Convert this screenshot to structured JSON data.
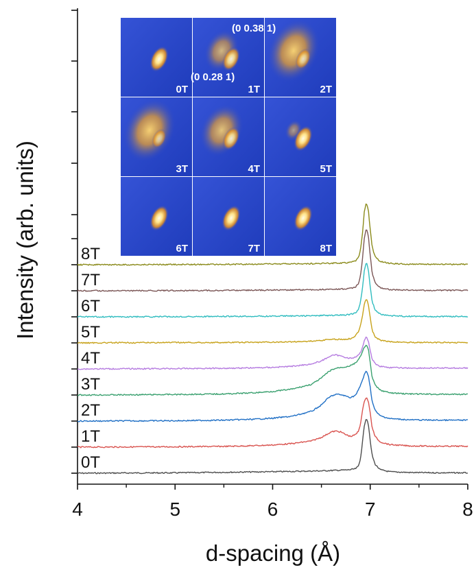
{
  "chart_data": {
    "type": "line",
    "title": "",
    "xlabel": "d-spacing (Å)",
    "ylabel": "Intensity (arb. units)",
    "xlim": [
      4,
      8
    ],
    "x_ticks": [
      "4",
      "5",
      "6",
      "7",
      "8"
    ],
    "y_ticks_labeled": false,
    "vertical_offset_per_series": 1,
    "x": [
      4.0,
      4.5,
      5.0,
      5.5,
      5.8,
      6.0,
      6.2,
      6.4,
      6.5,
      6.55,
      6.6,
      6.65,
      6.7,
      6.75,
      6.8,
      6.85,
      6.88,
      6.9,
      6.92,
      6.94,
      6.96,
      6.98,
      7.0,
      7.02,
      7.05,
      7.1,
      7.2,
      7.4,
      7.7,
      8.0
    ],
    "series": [
      {
        "name": "0T",
        "color": "#4d4d4d",
        "values": [
          0.0,
          0.01,
          0.02,
          0.05,
          0.07,
          0.08,
          0.1,
          0.12,
          0.13,
          0.14,
          0.15,
          0.16,
          0.17,
          0.18,
          0.2,
          0.25,
          0.4,
          0.8,
          1.7,
          2.7,
          3.1,
          2.8,
          1.8,
          1.0,
          0.5,
          0.2,
          0.08,
          0.04,
          0.02,
          0.02
        ]
      },
      {
        "name": "1T",
        "color": "#d9534f",
        "values": [
          0.0,
          0.01,
          0.02,
          0.04,
          0.08,
          0.12,
          0.2,
          0.35,
          0.55,
          0.7,
          0.85,
          0.9,
          0.85,
          0.7,
          0.6,
          0.7,
          0.9,
          1.3,
          2.0,
          2.6,
          2.8,
          2.6,
          1.9,
          1.1,
          0.6,
          0.3,
          0.14,
          0.07,
          0.05,
          0.05
        ]
      },
      {
        "name": "2T",
        "color": "#1f6fc5",
        "values": [
          0.0,
          0.01,
          0.02,
          0.05,
          0.1,
          0.16,
          0.27,
          0.55,
          0.9,
          1.2,
          1.4,
          1.5,
          1.48,
          1.4,
          1.32,
          1.45,
          1.75,
          2.0,
          2.3,
          2.6,
          2.8,
          2.6,
          1.9,
          1.1,
          0.6,
          0.3,
          0.14,
          0.07,
          0.05,
          0.05
        ]
      },
      {
        "name": "3T",
        "color": "#3aa06f",
        "values": [
          0.0,
          0.01,
          0.03,
          0.06,
          0.12,
          0.2,
          0.33,
          0.6,
          0.95,
          1.2,
          1.4,
          1.5,
          1.55,
          1.58,
          1.65,
          1.8,
          2.0,
          2.15,
          2.4,
          2.7,
          2.8,
          2.6,
          1.8,
          1.0,
          0.55,
          0.28,
          0.12,
          0.06,
          0.04,
          0.04
        ]
      },
      {
        "name": "4T",
        "color": "#b57be0",
        "values": [
          0.0,
          0.01,
          0.02,
          0.04,
          0.06,
          0.09,
          0.15,
          0.28,
          0.45,
          0.6,
          0.75,
          0.78,
          0.72,
          0.65,
          0.6,
          0.65,
          0.78,
          0.92,
          1.2,
          1.6,
          1.8,
          1.6,
          1.05,
          0.55,
          0.3,
          0.15,
          0.08,
          0.05,
          0.05,
          0.05
        ]
      },
      {
        "name": "5T",
        "color": "#c7a21a",
        "values": [
          0.0,
          0.01,
          0.02,
          0.02,
          0.03,
          0.04,
          0.06,
          0.1,
          0.14,
          0.18,
          0.2,
          0.2,
          0.2,
          0.2,
          0.25,
          0.4,
          0.65,
          1.0,
          1.5,
          2.2,
          2.5,
          2.2,
          1.4,
          0.7,
          0.35,
          0.15,
          0.06,
          0.03,
          0.02,
          0.02
        ]
      },
      {
        "name": "6T",
        "color": "#2fbcbf",
        "values": [
          0.0,
          0.0,
          0.01,
          0.02,
          0.03,
          0.04,
          0.05,
          0.06,
          0.07,
          0.08,
          0.08,
          0.09,
          0.1,
          0.11,
          0.14,
          0.22,
          0.4,
          0.8,
          1.6,
          2.6,
          3.1,
          2.7,
          1.7,
          0.85,
          0.4,
          0.16,
          0.06,
          0.03,
          0.02,
          0.02
        ]
      },
      {
        "name": "7T",
        "color": "#7a5555",
        "values": [
          0.0,
          0.0,
          0.01,
          0.02,
          0.03,
          0.04,
          0.05,
          0.06,
          0.07,
          0.08,
          0.08,
          0.09,
          0.1,
          0.11,
          0.14,
          0.22,
          0.4,
          0.8,
          1.7,
          3.0,
          3.5,
          3.1,
          2.0,
          1.0,
          0.45,
          0.18,
          0.07,
          0.03,
          0.02,
          0.02
        ]
      },
      {
        "name": "8T",
        "color": "#8a8a1a",
        "values": [
          0.0,
          0.0,
          0.01,
          0.02,
          0.03,
          0.04,
          0.05,
          0.06,
          0.07,
          0.08,
          0.08,
          0.09,
          0.1,
          0.11,
          0.14,
          0.22,
          0.4,
          0.8,
          1.7,
          3.0,
          3.5,
          3.1,
          2.0,
          1.0,
          0.45,
          0.18,
          0.07,
          0.03,
          0.02,
          0.02
        ]
      }
    ],
    "inset": {
      "panels": [
        "0T",
        "1T",
        "2T",
        "3T",
        "4T",
        "5T",
        "6T",
        "7T",
        "8T"
      ],
      "annotations": [
        "(0 0.38 1)",
        "(0 0.28 1)"
      ],
      "colors": {
        "background": "#2a48c8",
        "spot": "#ffe8a0",
        "spot_edge": "#e07a10"
      }
    }
  }
}
